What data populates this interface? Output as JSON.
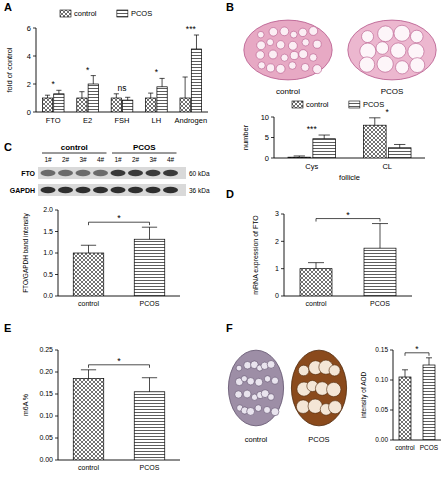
{
  "panel_labels": [
    "A",
    "B",
    "C",
    "D",
    "E",
    "F"
  ],
  "chart_data": [
    {
      "type": "bar",
      "ylabel": "fold of control",
      "categories": [
        "FTO",
        "E2",
        "FSH",
        "LH",
        "Androgen"
      ],
      "series": [
        {
          "name": "control",
          "values": [
            1,
            1,
            1,
            1,
            1
          ],
          "errors": [
            0.2,
            0.45,
            0.3,
            0.35,
            1.5
          ]
        },
        {
          "name": "PCOS",
          "values": [
            1.3,
            2.0,
            0.85,
            1.8,
            4.5
          ],
          "errors": [
            0.25,
            0.6,
            0.2,
            0.6,
            1.0
          ]
        }
      ],
      "significance": [
        "*",
        "*",
        "ns",
        "*",
        "***"
      ],
      "ylim": [
        0,
        6
      ],
      "yticks": [
        0,
        2,
        4,
        6
      ],
      "legend": "top",
      "color": "#333333"
    },
    {
      "type": "bar",
      "ylabel": "number",
      "xlabel": "follicle",
      "categories": [
        "Cys",
        "CL"
      ],
      "series": [
        {
          "name": "control",
          "values": [
            0.2,
            8.0
          ],
          "errors": [
            0.3,
            1.8
          ]
        },
        {
          "name": "PCOS",
          "values": [
            4.7,
            2.5
          ],
          "errors": [
            0.9,
            0.8
          ]
        }
      ],
      "significance": [
        "***",
        "*"
      ],
      "ylim": [
        0,
        10
      ],
      "yticks": [
        0,
        5,
        10
      ],
      "legend": "top",
      "color": "#333333"
    },
    {
      "type": "bar",
      "ylabel": "FTO/GAPDH band intensity",
      "categories": [
        "control",
        "PCOS"
      ],
      "values": [
        1.0,
        1.32
      ],
      "errors": [
        0.18,
        0.28
      ],
      "significance": "*",
      "ylim": [
        0,
        2
      ],
      "yticks": [
        {
          "value": 0,
          "label": "0.0"
        },
        0.5,
        {
          "value": 1,
          "label": "1.0"
        },
        1.5,
        {
          "value": 2,
          "label": "2.0"
        }
      ],
      "color": "#333333"
    },
    {
      "type": "bar",
      "ylabel": "mRNA expression of FTO",
      "categories": [
        "control",
        "PCOS"
      ],
      "values": [
        1.0,
        1.75
      ],
      "errors": [
        0.22,
        0.9
      ],
      "significance": "*",
      "ylim": [
        0,
        3
      ],
      "yticks": [
        0,
        1,
        2,
        3
      ],
      "color": "#333333"
    },
    {
      "type": "bar",
      "ylabel": "m6A %",
      "categories": [
        "control",
        "PCOS"
      ],
      "values": [
        0.185,
        0.155
      ],
      "errors": [
        0.02,
        0.032
      ],
      "significance": "*",
      "ylim": [
        0,
        0.25
      ],
      "yticks": [
        {
          "value": 0,
          "label": "0.00"
        },
        0.05,
        {
          "value": 0.1,
          "label": "0.10"
        },
        0.15,
        {
          "value": 0.2,
          "label": "0.20"
        },
        0.25
      ],
      "color": "#333333"
    },
    {
      "type": "bar",
      "ylabel": "intensity of AOD",
      "categories": [
        "control",
        "PCOS"
      ],
      "values": [
        0.105,
        0.125
      ],
      "errors": [
        0.012,
        0.012
      ],
      "significance": "*",
      "ylim": [
        0,
        0.15
      ],
      "yticks": [
        {
          "value": 0,
          "label": "0.00"
        },
        0.05,
        {
          "value": 0.1,
          "label": "0.10"
        },
        0.15
      ],
      "color": "#333333"
    }
  ],
  "histology": {
    "labels": [
      "control",
      "PCOS"
    ]
  },
  "blot": {
    "groups": [
      "control",
      "PCOS"
    ],
    "lanes": [
      "1#",
      "2#",
      "3#",
      "4#",
      "1#",
      "2#",
      "3#",
      "4#"
    ],
    "bands": [
      {
        "name": "FTO",
        "size": "60 kDa"
      },
      {
        "name": "GAPDH",
        "size": "36 kDa"
      }
    ]
  },
  "ihc": {
    "labels": [
      "control",
      "PCOS"
    ]
  }
}
